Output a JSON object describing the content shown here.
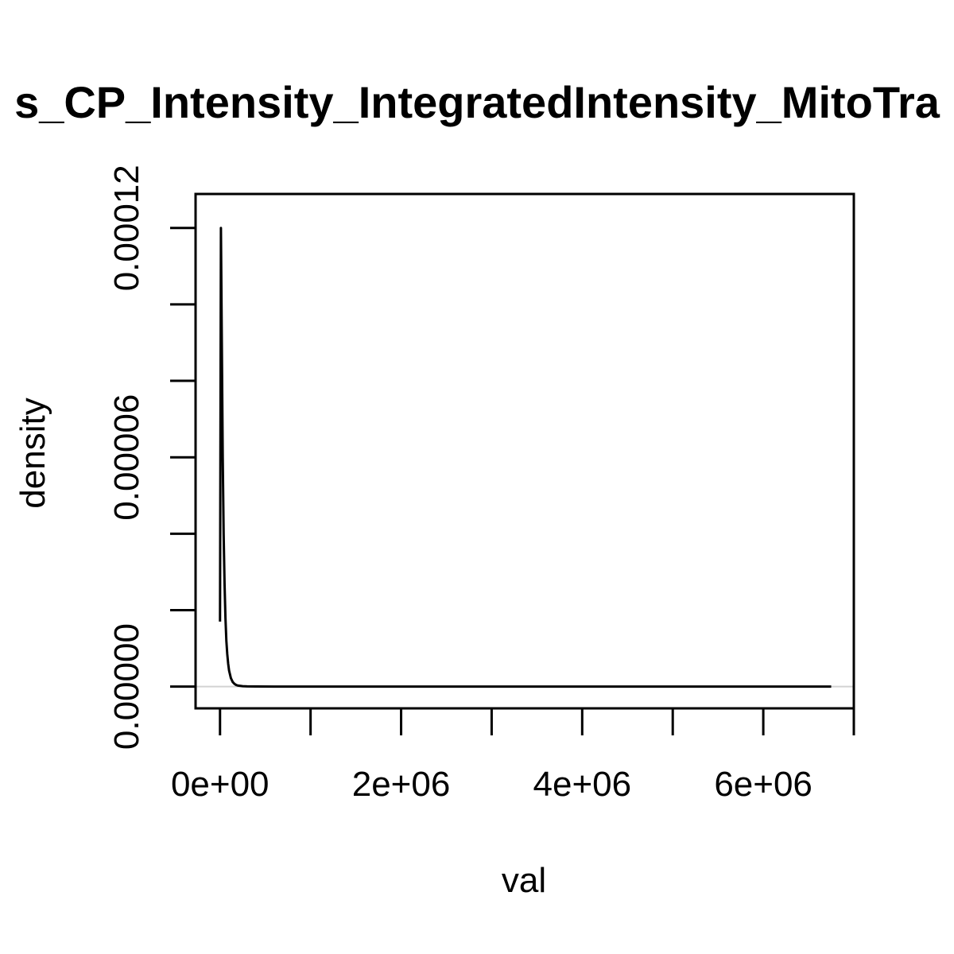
{
  "chart_data": {
    "type": "line",
    "title": "s_CP_Intensity_IntegratedIntensity_MitoTra",
    "xlabel": "val",
    "ylabel": "density",
    "xlim": [
      -270000,
      7000000
    ],
    "ylim": [
      -5.7e-06,
      0.0001289
    ],
    "x_ticks": [
      0,
      1000000,
      2000000,
      3000000,
      4000000,
      5000000,
      6000000,
      7000000
    ],
    "x_tick_labels": [
      {
        "value": 0,
        "label": "0e+00"
      },
      {
        "value": 2000000,
        "label": "2e+06"
      },
      {
        "value": 4000000,
        "label": "4e+06"
      },
      {
        "value": 6000000,
        "label": "6e+06"
      }
    ],
    "y_ticks": [
      0,
      2e-05,
      4e-05,
      6e-05,
      8e-05,
      0.0001,
      0.00012
    ],
    "y_tick_labels": [
      {
        "value": 0,
        "label": "0.00000"
      },
      {
        "value": 6e-05,
        "label": "0.00006"
      },
      {
        "value": 0.00012,
        "label": "0.00012"
      }
    ],
    "zero_line": true,
    "colors": {
      "line": "#000000",
      "frame": "#000000",
      "zero_line": "#d3d3d3"
    },
    "series": [
      {
        "x": [
          0,
          10000,
          20000,
          30000,
          40000,
          50000,
          60000,
          70000,
          80000,
          90000,
          100000,
          120000,
          140000,
          160000,
          180000,
          200000,
          250000,
          300000,
          400000,
          600000,
          1000000,
          2000000,
          4000000,
          6000000,
          6750000
        ],
        "y": [
          1.7e-05,
          0.00012,
          9e-05,
          6e-05,
          4e-05,
          2.7e-05,
          1.8e-05,
          1.2e-05,
          8.5e-06,
          6e-06,
          4.2e-06,
          2.2e-06,
          1.2e-06,
          7e-07,
          4e-07,
          2.5e-07,
          1e-07,
          4e-08,
          1e-08,
          0,
          0,
          0,
          0,
          0,
          0
        ]
      }
    ]
  }
}
